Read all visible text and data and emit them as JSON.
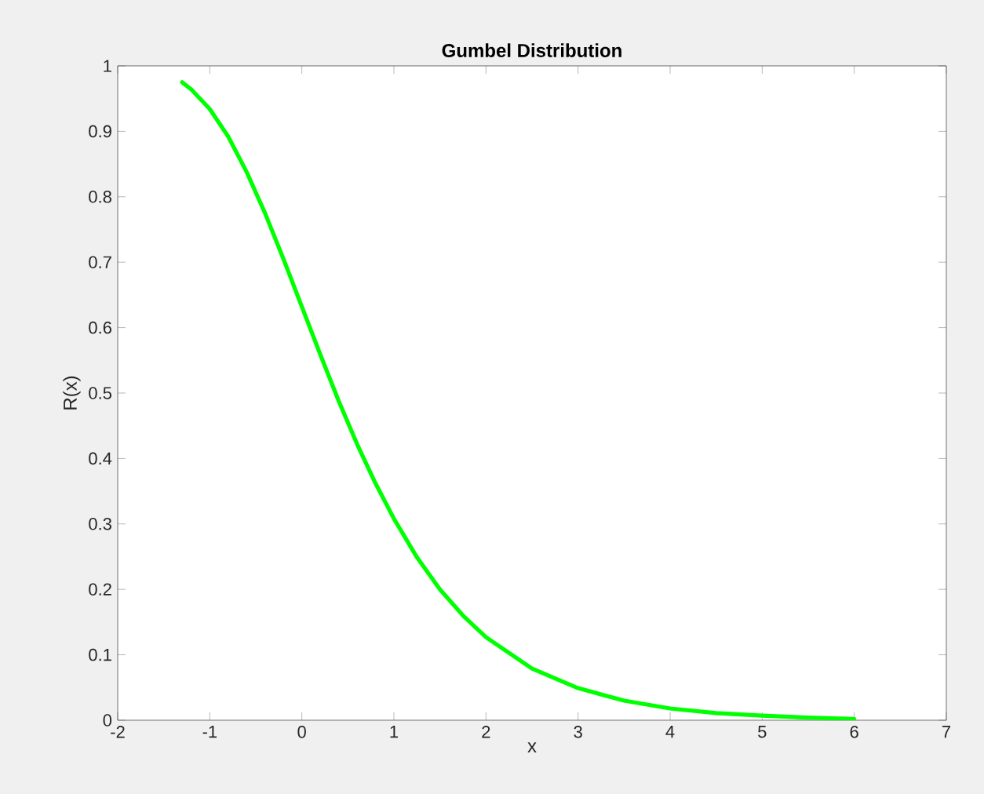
{
  "chart_data": {
    "type": "line",
    "title": "Gumbel Distribution",
    "xlabel": "x",
    "ylabel": "R(x)",
    "x": [
      -1.3,
      -1.2,
      -1.0,
      -0.8,
      -0.6,
      -0.4,
      -0.2,
      0,
      0.2,
      0.4,
      0.6,
      0.8,
      1.0,
      1.25,
      1.5,
      1.75,
      2,
      2.5,
      3,
      3.5,
      4,
      4.5,
      5,
      5.5,
      6
    ],
    "values": [
      0.975,
      0.964,
      0.934,
      0.892,
      0.838,
      0.775,
      0.705,
      0.632,
      0.559,
      0.488,
      0.422,
      0.362,
      0.308,
      0.249,
      0.2,
      0.16,
      0.127,
      0.079,
      0.049,
      0.03,
      0.018,
      0.011,
      0.007,
      0.004,
      0.002
    ],
    "color": "#00ff00",
    "xlim": [
      -2,
      7
    ],
    "ylim": [
      0,
      1
    ],
    "xticks": [
      -2,
      -1,
      0,
      1,
      2,
      3,
      4,
      5,
      6,
      7
    ],
    "yticks": [
      0,
      0.1,
      0.2,
      0.3,
      0.4,
      0.5,
      0.6,
      0.7,
      0.8,
      0.9,
      1
    ]
  }
}
